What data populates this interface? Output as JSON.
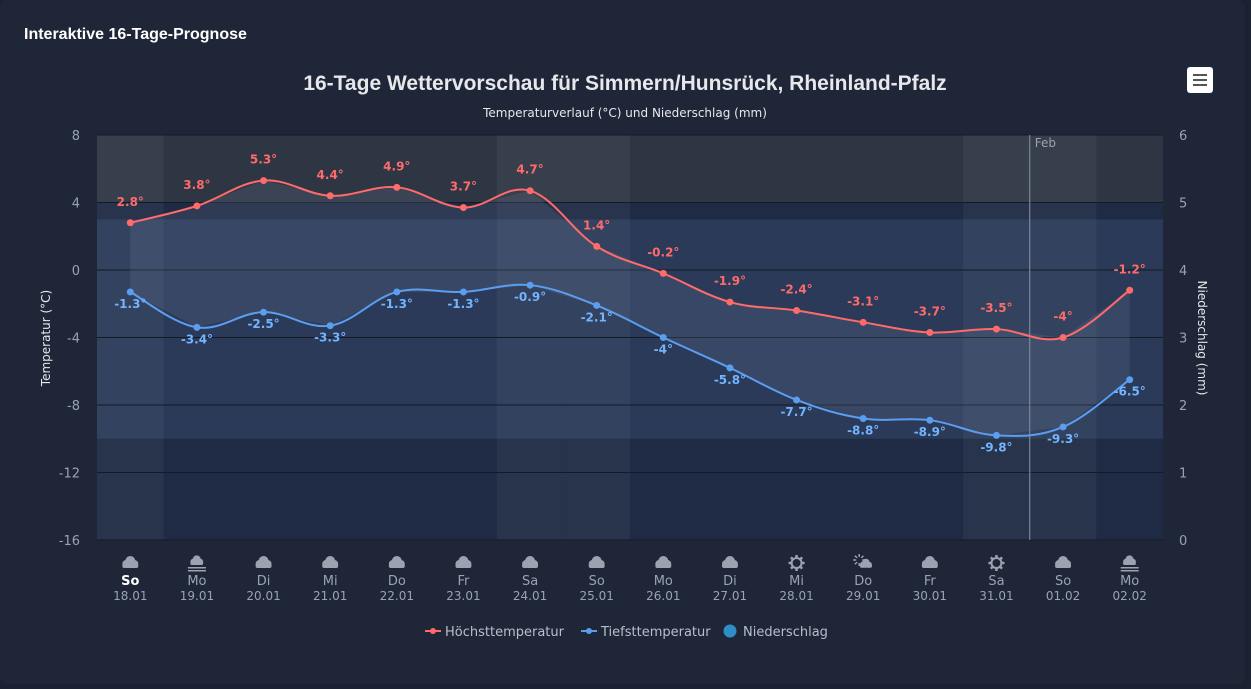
{
  "card_title": "Interaktive 16-Tage-Prognose",
  "menu_icon": "hamburger-menu-icon",
  "chart_data": {
    "type": "line",
    "title": "16-Tage Wettervorschau für Simmern/Hunsrück, Rheinland-Pfalz",
    "subtitle": "Temperaturverlauf (°C) und Niederschlag (mm)",
    "ylabel_left": "Temperatur (°C)",
    "ylabel_right": "Niederschlag (mm)",
    "ylim_left": [
      -16,
      8
    ],
    "yticks_left": [
      8,
      4,
      0,
      -4,
      -8,
      -12,
      -16
    ],
    "ylim_right": [
      0,
      6
    ],
    "yticks_right": [
      6,
      5,
      4,
      3,
      2,
      1,
      0
    ],
    "grid": true,
    "legend_placement": "bottom",
    "plot_line_label": "Feb",
    "plot_bands": [
      {
        "from": 4,
        "to": 8,
        "color": "#2e3644"
      },
      {
        "from": -10,
        "to": 3,
        "color": "#2a3a58"
      }
    ],
    "categories": [
      {
        "day": "So",
        "date": "18.01",
        "icon": "cloud-icon",
        "bold": true,
        "weekend": true
      },
      {
        "day": "Mo",
        "date": "19.01",
        "icon": "fog-icon"
      },
      {
        "day": "Di",
        "date": "20.01",
        "icon": "cloud-icon"
      },
      {
        "day": "Mi",
        "date": "21.01",
        "icon": "cloud-icon"
      },
      {
        "day": "Do",
        "date": "22.01",
        "icon": "cloud-icon"
      },
      {
        "day": "Fr",
        "date": "23.01",
        "icon": "cloud-icon"
      },
      {
        "day": "Sa",
        "date": "24.01",
        "icon": "cloud-icon",
        "weekend": true
      },
      {
        "day": "So",
        "date": "25.01",
        "icon": "cloud-icon",
        "weekend": true
      },
      {
        "day": "Mo",
        "date": "26.01",
        "icon": "cloud-icon"
      },
      {
        "day": "Di",
        "date": "27.01",
        "icon": "cloud-icon"
      },
      {
        "day": "Mi",
        "date": "28.01",
        "icon": "sun-icon"
      },
      {
        "day": "Do",
        "date": "29.01",
        "icon": "partly-cloudy-icon"
      },
      {
        "day": "Fr",
        "date": "30.01",
        "icon": "cloud-icon"
      },
      {
        "day": "Sa",
        "date": "31.01",
        "icon": "sun-icon",
        "weekend": true
      },
      {
        "day": "So",
        "date": "01.02",
        "icon": "cloud-icon",
        "weekend": true
      },
      {
        "day": "Mo",
        "date": "02.02",
        "icon": "fog-icon"
      }
    ],
    "series": [
      {
        "name": "Höchsttemperatur",
        "color": "#ff6b6b",
        "values": [
          2.8,
          3.8,
          5.3,
          4.4,
          4.9,
          3.7,
          4.7,
          1.4,
          -0.2,
          -1.9,
          -2.4,
          -3.1,
          -3.7,
          -3.5,
          -4,
          -1.2
        ]
      },
      {
        "name": "Tiefsttemperatur",
        "color": "#5b9ef0",
        "values": [
          -1.3,
          -3.4,
          -2.5,
          -3.3,
          -1.3,
          -1.3,
          -0.9,
          -2.1,
          -4,
          -5.8,
          -7.7,
          -8.8,
          -8.9,
          -9.8,
          -9.3,
          -6.5
        ]
      },
      {
        "name": "Niederschlag",
        "color": "#2e8fc8"
      }
    ]
  }
}
